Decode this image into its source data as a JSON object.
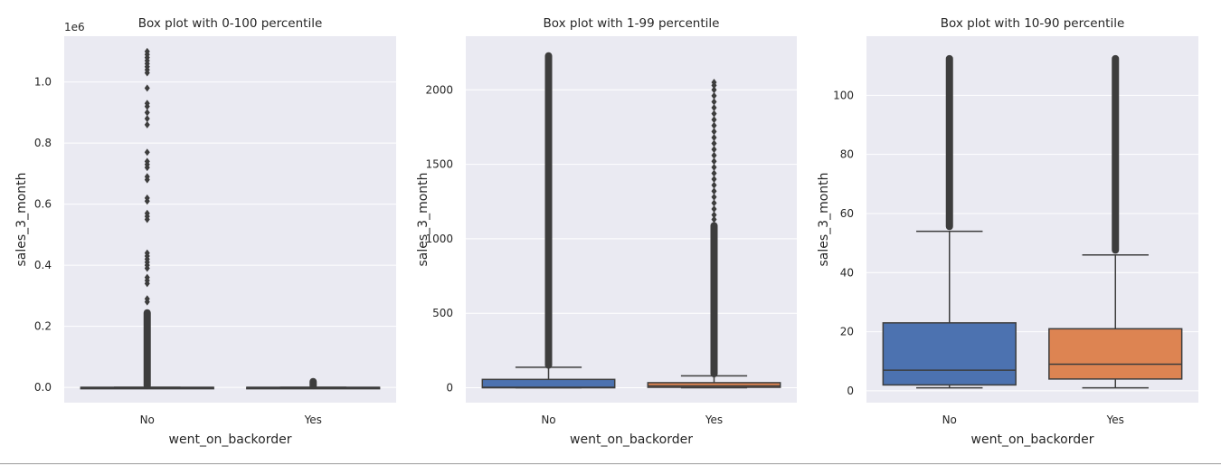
{
  "chart_data": [
    {
      "type": "box",
      "title": "Box plot with 0-100 percentile",
      "xlabel": "went_on_backorder",
      "ylabel": "sales_3_month",
      "offset_text": "1e6",
      "categories": [
        "No",
        "Yes"
      ],
      "ylim": [
        -50000,
        1150000
      ],
      "yticks": [
        0,
        200000,
        400000,
        600000,
        800000,
        1000000
      ],
      "ytick_labels": [
        "0.0",
        "0.2",
        "0.4",
        "0.6",
        "0.8",
        "1.0"
      ],
      "grid": true,
      "boxes": [
        {
          "category": "No",
          "color": "#4c72b0",
          "whislo": 0,
          "q1": 0,
          "median": 0,
          "q3": 20,
          "whishi": 50,
          "outlier_range": [
            100,
            250000
          ],
          "outliers": [
            280000,
            290000,
            340000,
            350000,
            360000,
            390000,
            400000,
            410000,
            420000,
            430000,
            440000,
            550000,
            560000,
            570000,
            610000,
            620000,
            680000,
            690000,
            720000,
            730000,
            740000,
            770000,
            860000,
            880000,
            900000,
            920000,
            930000,
            980000,
            1030000,
            1040000,
            1050000,
            1060000,
            1070000,
            1080000,
            1090000,
            1100000
          ]
        },
        {
          "category": "Yes",
          "color": "#dd8452",
          "whislo": 0,
          "q1": 0,
          "median": 0,
          "q3": 10,
          "whishi": 30,
          "outlier_range": [
            100,
            25000
          ],
          "outliers": []
        }
      ]
    },
    {
      "type": "box",
      "title": "Box plot with 1-99 percentile",
      "xlabel": "went_on_backorder",
      "ylabel": "sales_3_month",
      "categories": [
        "No",
        "Yes"
      ],
      "ylim": [
        -100,
        2360
      ],
      "yticks": [
        0,
        500,
        1000,
        1500,
        2000
      ],
      "grid": true,
      "boxes": [
        {
          "category": "No",
          "color": "#4c72b0",
          "whislo": 0,
          "q1": 0,
          "median": 3,
          "q3": 56,
          "whishi": 138,
          "outlier_range": [
            140,
            2240
          ],
          "outliers": []
        },
        {
          "category": "Yes",
          "color": "#dd8452",
          "whislo": 0,
          "q1": 3,
          "median": 12,
          "q3": 34,
          "whishi": 80,
          "outlier_range": [
            82,
            1100
          ],
          "outliers": [
            1130,
            1160,
            1200,
            1240,
            1280,
            1320,
            1360,
            1400,
            1440,
            1480,
            1520,
            1560,
            1600,
            1640,
            1680,
            1720,
            1760,
            1800,
            1840,
            1880,
            1920,
            1960,
            2000,
            2030,
            2050
          ]
        }
      ]
    },
    {
      "type": "box",
      "title": "Box plot with 10-90 percentile",
      "xlabel": "went_on_backorder",
      "ylabel": "sales_3_month",
      "categories": [
        "No",
        "Yes"
      ],
      "ylim": [
        -4,
        120
      ],
      "yticks": [
        0,
        20,
        40,
        60,
        80,
        100
      ],
      "grid": true,
      "boxes": [
        {
          "category": "No",
          "color": "#4c72b0",
          "whislo": 1,
          "q1": 2,
          "median": 7,
          "q3": 23,
          "whishi": 54,
          "outlier_range": [
            55,
            113
          ],
          "outliers": []
        },
        {
          "category": "Yes",
          "color": "#dd8452",
          "whislo": 1,
          "q1": 4,
          "median": 9,
          "q3": 21,
          "whishi": 46,
          "outlier_range": [
            47,
            113
          ],
          "outliers": []
        }
      ]
    }
  ]
}
